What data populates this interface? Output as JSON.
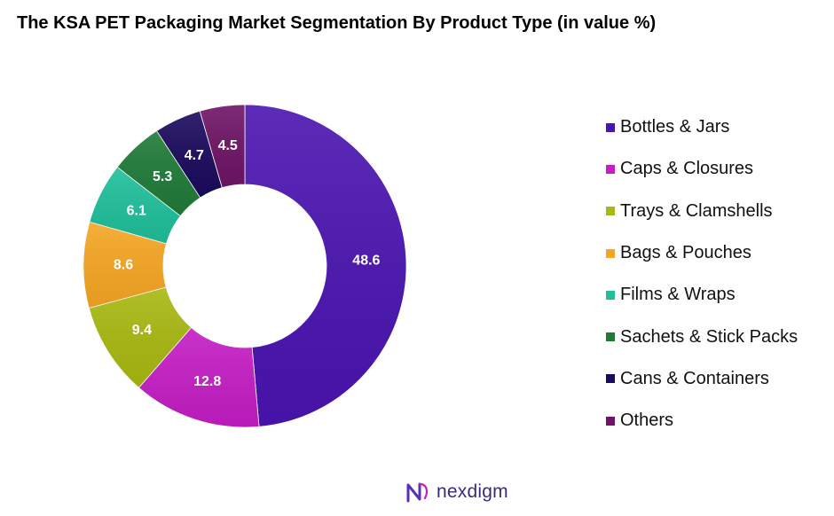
{
  "chart_data": {
    "type": "pie",
    "title": "The KSA PET Packaging Market Segmentation By Product Type (in value %)",
    "categories": [
      "Bottles & Jars",
      "Caps & Closures",
      "Trays & Clamshells",
      "Bags & Pouches",
      "Films & Wraps",
      "Sachets & Stick Packs",
      "Cans & Containers",
      "Others"
    ],
    "values": [
      48.6,
      12.8,
      9.4,
      8.6,
      6.1,
      5.3,
      4.7,
      4.5
    ],
    "data_labels": [
      "48.6",
      "12.8",
      "9.4",
      "8.6",
      "6.1",
      "5.3",
      "4.7",
      "4.5"
    ],
    "colors": [
      "#4a14b0",
      "#c41dc4",
      "#a8b810",
      "#f5a623",
      "#1fbf9a",
      "#1f7a38",
      "#1a0a5c",
      "#6e1466"
    ],
    "donut": true,
    "legend_position": "right",
    "start": "top",
    "direction": "clockwise"
  },
  "branding": {
    "name": "nexdigm",
    "icon": "nexdigm-logo-icon"
  }
}
